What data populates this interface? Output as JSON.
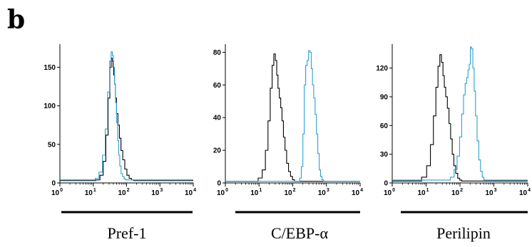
{
  "figure": {
    "panel_label": "b"
  },
  "colors": {
    "control": "#000000",
    "treated": "#2e9fd0",
    "overlap": "#7a1f2a",
    "axis": "#000000"
  },
  "chart_data": [
    {
      "type": "line",
      "name": "pref1-histogram",
      "title": "",
      "xlabel": "",
      "ylabel": "",
      "caption": "Pref-1",
      "xscale": "log",
      "xlim": [
        1,
        10000
      ],
      "ylim": [
        0,
        180
      ],
      "yticks": [
        0,
        50,
        100,
        150
      ],
      "xtick_labels": [
        {
          "base": "10",
          "exp": "0"
        },
        {
          "base": "10",
          "exp": "1"
        },
        {
          "base": "10",
          "exp": "2"
        },
        {
          "base": "10",
          "exp": "3"
        },
        {
          "base": "10",
          "exp": "4"
        }
      ],
      "grid": false,
      "legend": "none",
      "series": [
        {
          "color": "control",
          "x": [
            1,
            10,
            14,
            18,
            22,
            26,
            30,
            33,
            36,
            38,
            40,
            42,
            45,
            48,
            52,
            58,
            64,
            72,
            82,
            95,
            110,
            130,
            150,
            180,
            10000
          ],
          "y": [
            3,
            3,
            4,
            10,
            28,
            62,
            110,
            150,
            162,
            158,
            150,
            140,
            128,
            110,
            90,
            75,
            58,
            42,
            30,
            18,
            10,
            6,
            4,
            3,
            3
          ]
        },
        {
          "color": "treated",
          "x": [
            1,
            10,
            13,
            17,
            21,
            25,
            29,
            33,
            36,
            39,
            42,
            45,
            48,
            52,
            56,
            60,
            65,
            72,
            80,
            90,
            100,
            115,
            10000
          ],
          "y": [
            4,
            4,
            6,
            14,
            36,
            70,
            118,
            158,
            170,
            165,
            150,
            128,
            104,
            78,
            55,
            36,
            22,
            12,
            8,
            5,
            4,
            4,
            4
          ]
        }
      ]
    },
    {
      "type": "line",
      "name": "cebpa-histogram",
      "title": "",
      "xlabel": "",
      "ylabel": "",
      "caption": "C/EBP-α",
      "xscale": "log",
      "xlim": [
        1,
        10000
      ],
      "ylim": [
        0,
        85
      ],
      "yticks": [
        0,
        20,
        40,
        60,
        80
      ],
      "xtick_labels": [
        {
          "base": "10",
          "exp": "0"
        },
        {
          "base": "10",
          "exp": "1"
        },
        {
          "base": "10",
          "exp": "2"
        },
        {
          "base": "10",
          "exp": "3"
        },
        {
          "base": "10",
          "exp": "4"
        }
      ],
      "grid": false,
      "legend": "none",
      "series": [
        {
          "color": "control",
          "x": [
            1,
            8,
            11,
            14,
            17,
            20,
            23,
            26,
            29,
            32,
            35,
            38,
            42,
            46,
            50,
            56,
            62,
            70,
            80,
            92,
            105,
            120,
            140,
            10000
          ],
          "y": [
            1,
            1,
            3,
            8,
            20,
            38,
            58,
            72,
            79,
            75,
            66,
            58,
            52,
            46,
            38,
            28,
            20,
            12,
            7,
            4,
            2,
            1,
            1,
            1
          ]
        },
        {
          "color": "treated",
          "x": [
            1,
            150,
            170,
            190,
            210,
            230,
            255,
            280,
            310,
            340,
            370,
            400,
            440,
            480,
            530,
            580,
            640,
            700,
            780,
            870,
            10000
          ],
          "y": [
            1,
            1,
            3,
            10,
            30,
            60,
            72,
            75,
            81,
            80,
            70,
            60,
            52,
            42,
            30,
            18,
            8,
            4,
            2,
            1,
            1
          ]
        }
      ]
    },
    {
      "type": "line",
      "name": "perilipin-histogram",
      "title": "",
      "xlabel": "",
      "ylabel": "",
      "caption": "Perilipin",
      "xscale": "log",
      "xlim": [
        1,
        10000
      ],
      "ylim": [
        0,
        145
      ],
      "yticks": [
        0,
        30,
        60,
        90,
        120
      ],
      "xtick_labels": [
        {
          "base": "10",
          "exp": "0"
        },
        {
          "base": "10",
          "exp": "1"
        },
        {
          "base": "10",
          "exp": "2"
        },
        {
          "base": "10",
          "exp": "3"
        },
        {
          "base": "10",
          "exp": "4"
        }
      ],
      "grid": false,
      "legend": "none",
      "series": [
        {
          "color": "control",
          "x": [
            1,
            6,
            9,
            12,
            15,
            18,
            21,
            24,
            27,
            30,
            33,
            36,
            40,
            45,
            50,
            56,
            62,
            70,
            80,
            92,
            105,
            120,
            10000
          ],
          "y": [
            2,
            2,
            6,
            18,
            40,
            70,
            100,
            122,
            134,
            126,
            112,
            100,
            90,
            78,
            62,
            46,
            30,
            18,
            10,
            5,
            3,
            2,
            2
          ]
        },
        {
          "color": "treated",
          "x": [
            1,
            45,
            60,
            75,
            90,
            105,
            120,
            135,
            150,
            165,
            180,
            195,
            210,
            230,
            250,
            275,
            300,
            340,
            380,
            430,
            480,
            540,
            10000
          ],
          "y": [
            3,
            3,
            6,
            14,
            28,
            48,
            72,
            92,
            104,
            110,
            118,
            124,
            142,
            140,
            120,
            96,
            70,
            44,
            24,
            12,
            6,
            3,
            3
          ]
        }
      ]
    }
  ]
}
